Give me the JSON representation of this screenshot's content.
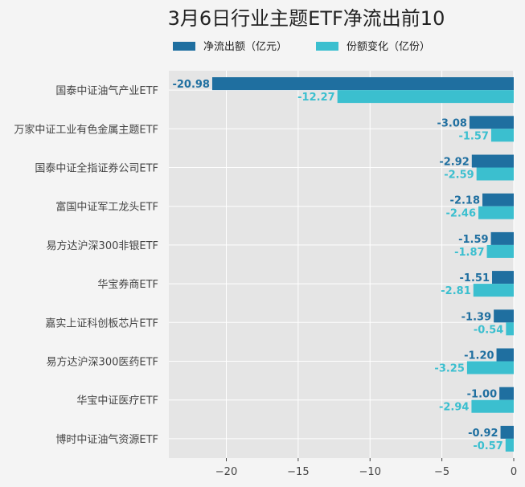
{
  "chart_data": {
    "type": "bar",
    "orientation": "horizontal",
    "title": "3月6日行业主题ETF净流出前10",
    "xlabel": "",
    "ylabel": "",
    "xlim": [
      -24,
      0
    ],
    "xticks": [
      -20,
      -15,
      -10,
      -5,
      0
    ],
    "grid": true,
    "legend_position": "top",
    "categories": [
      "国泰中证油气产业ETF",
      "万家中证工业有色金属主题ETF",
      "国泰中证全指证券公司ETF",
      "富国中证军工龙头ETF",
      "易方达沪深300非银ETF",
      "华宝券商ETF",
      "嘉实上证科创板芯片ETF",
      "易方达沪深300医药ETF",
      "华宝中证医疗ETF",
      "博时中证油气资源ETF"
    ],
    "series": [
      {
        "name": "净流出额（亿元）",
        "color": "#1f6fa0",
        "values": [
          -20.98,
          -3.08,
          -2.92,
          -2.18,
          -1.59,
          -1.51,
          -1.39,
          -1.2,
          -1.0,
          -0.92
        ],
        "labels": [
          "-20.98",
          "-3.08",
          "-2.92",
          "-2.18",
          "-1.59",
          "-1.51",
          "-1.39",
          "-1.20",
          "-1.00",
          "-0.92"
        ]
      },
      {
        "name": "份额变化（亿份）",
        "color": "#3bbfcf",
        "values": [
          -12.27,
          -1.57,
          -2.59,
          -2.46,
          -1.87,
          -2.81,
          -0.54,
          -3.25,
          -2.94,
          -0.57
        ],
        "labels": [
          "-12.27",
          "-1.57",
          "-2.59",
          "-2.46",
          "-1.87",
          "-2.81",
          "-0.54",
          "-3.25",
          "-2.94",
          "-0.57"
        ]
      }
    ],
    "colors": {
      "plot_background": "#e5e5e5",
      "gridline": "#ffffff",
      "page_background": "#f4f4f4"
    }
  }
}
